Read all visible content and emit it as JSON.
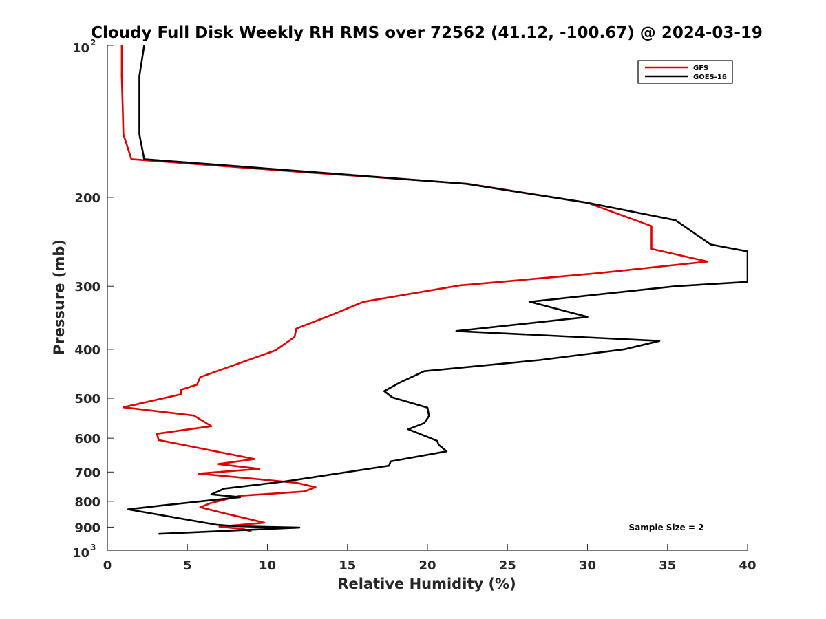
{
  "chart_data": {
    "type": "line",
    "title": "Cloudy Full Disk Weekly RH RMS over 72562 (41.12, -100.67) @ 2024-03-19",
    "xlabel": "Relative Humidity (%)",
    "ylabel": "Pressure (mb)",
    "xlim": [
      0,
      40
    ],
    "ylim": [
      100,
      1000
    ],
    "y_scale": "log",
    "y_reversed": true,
    "x_ticks": [
      "0",
      "5",
      "10",
      "15",
      "20",
      "25",
      "30",
      "35",
      "40"
    ],
    "y_ticks": [
      {
        "value": 100,
        "base": "10",
        "exp": "2"
      },
      {
        "value": 200,
        "label": "200"
      },
      {
        "value": 300,
        "label": "300"
      },
      {
        "value": 400,
        "label": "400"
      },
      {
        "value": 500,
        "label": "500"
      },
      {
        "value": 600,
        "label": "600"
      },
      {
        "value": 700,
        "label": "700"
      },
      {
        "value": 800,
        "label": "800"
      },
      {
        "value": 900,
        "label": "900"
      },
      {
        "value": 1000,
        "base": "10",
        "exp": "3"
      }
    ],
    "grid": false,
    "legend_position": "top-right",
    "series": [
      {
        "name": "GFS",
        "color": "#e00000",
        "points": [
          [
            0.9,
            100
          ],
          [
            0.9,
            115
          ],
          [
            0.95,
            130
          ],
          [
            1.0,
            150
          ],
          [
            1.5,
            168
          ],
          [
            12.0,
            178
          ],
          [
            22.5,
            188
          ],
          [
            30.0,
            205
          ],
          [
            34.0,
            228
          ],
          [
            34.0,
            253
          ],
          [
            37.5,
            268
          ],
          [
            30.5,
            283
          ],
          [
            22.0,
            299
          ],
          [
            16.0,
            322
          ],
          [
            14.0,
            342
          ],
          [
            11.8,
            364
          ],
          [
            11.7,
            378
          ],
          [
            10.5,
            402
          ],
          [
            5.8,
            454
          ],
          [
            5.6,
            470
          ],
          [
            4.6,
            481
          ],
          [
            4.6,
            491
          ],
          [
            1.0,
            521
          ],
          [
            5.4,
            541
          ],
          [
            6.5,
            568
          ],
          [
            3.1,
            588
          ],
          [
            3.2,
            605
          ],
          [
            9.2,
            660
          ],
          [
            6.9,
            675
          ],
          [
            9.5,
            690
          ],
          [
            5.7,
            705
          ],
          [
            11.8,
            735
          ],
          [
            13.0,
            750
          ],
          [
            12.3,
            765
          ],
          [
            8.3,
            780
          ],
          [
            6.5,
            806
          ],
          [
            5.8,
            822
          ],
          [
            7.3,
            845
          ],
          [
            8.7,
            865
          ],
          [
            9.8,
            882
          ],
          [
            7.0,
            898
          ],
          [
            8.5,
            908
          ],
          [
            9.0,
            918
          ]
        ]
      },
      {
        "name": "GOES-16",
        "color": "#000000",
        "points": [
          [
            2.3,
            100
          ],
          [
            2.0,
            115
          ],
          [
            2.0,
            130
          ],
          [
            2.0,
            150
          ],
          [
            2.3,
            168
          ],
          [
            22.4,
            188
          ],
          [
            30.0,
            205
          ],
          [
            35.5,
            222
          ],
          [
            37.7,
            248
          ],
          [
            40.0,
            256
          ],
          [
            40.0,
            294
          ],
          [
            35.5,
            300
          ],
          [
            26.4,
            322
          ],
          [
            30.0,
            345
          ],
          [
            21.8,
            368
          ],
          [
            34.5,
            385
          ],
          [
            32.3,
            400
          ],
          [
            27.0,
            420
          ],
          [
            19.8,
            442
          ],
          [
            18.3,
            465
          ],
          [
            17.3,
            484
          ],
          [
            17.8,
            498
          ],
          [
            20.0,
            522
          ],
          [
            20.1,
            542
          ],
          [
            19.8,
            560
          ],
          [
            18.8,
            576
          ],
          [
            20.6,
            607
          ],
          [
            20.7,
            618
          ],
          [
            21.2,
            637
          ],
          [
            17.7,
            667
          ],
          [
            17.6,
            680
          ],
          [
            11.2,
            730
          ],
          [
            7.3,
            755
          ],
          [
            6.5,
            775
          ],
          [
            8.3,
            785
          ],
          [
            3.6,
            814
          ],
          [
            1.3,
            830
          ],
          [
            6.8,
            890
          ],
          [
            8.0,
            896
          ],
          [
            12.0,
            902
          ],
          [
            3.2,
            928
          ]
        ]
      }
    ],
    "annotation": "Sample Size = 2"
  }
}
